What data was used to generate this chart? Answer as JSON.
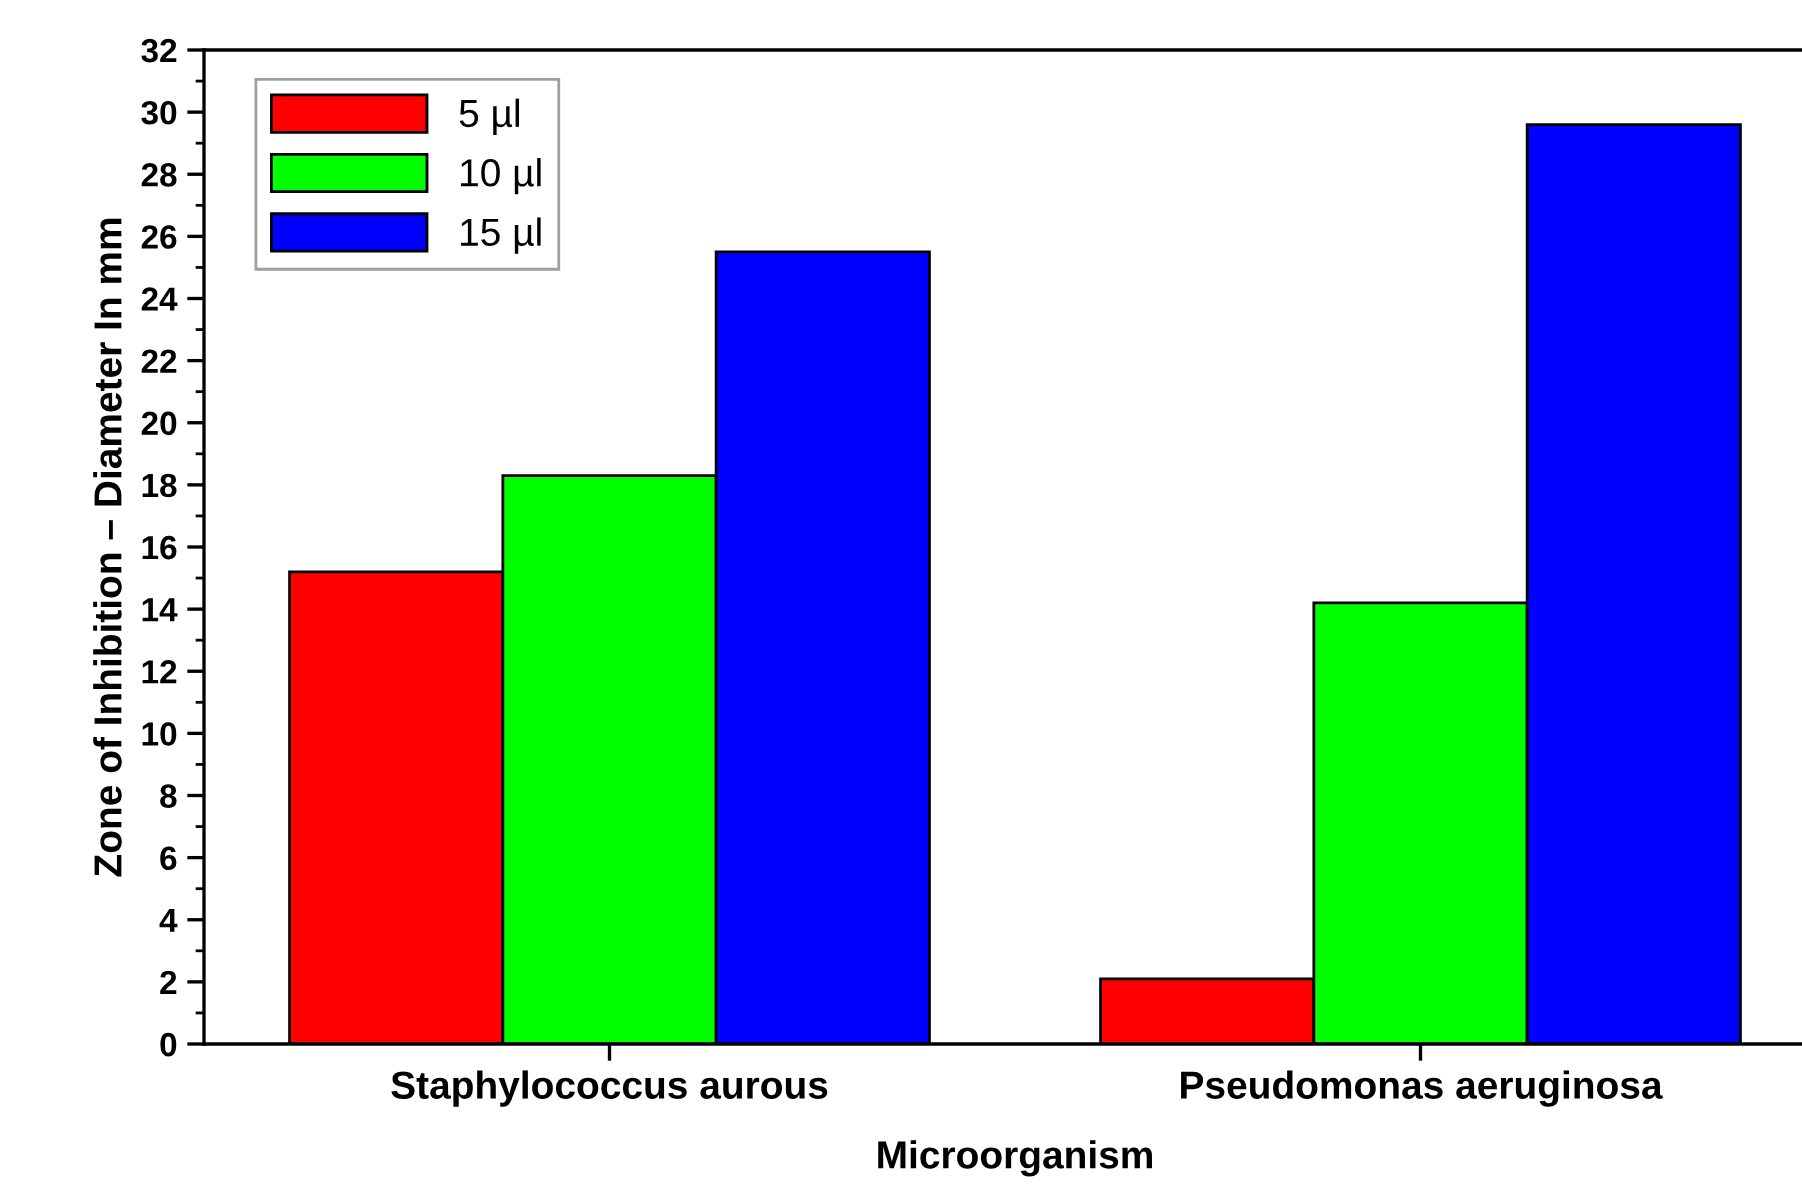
{
  "chart_data": {
    "type": "bar",
    "xlabel": "Microorganism",
    "ylabel": "Zone of Inhibition – Diameter In mm",
    "categories": [
      "Staphylococcus aurous",
      "Pseudomonas aeruginosa"
    ],
    "series": [
      {
        "name": "5 µl",
        "color": "#ff0000",
        "values": [
          15.2,
          2.1
        ]
      },
      {
        "name": "10 µl",
        "color": "#00ff00",
        "values": [
          18.3,
          14.2
        ]
      },
      {
        "name": "15 µl",
        "color": "#0000ff",
        "values": [
          25.5,
          29.6
        ]
      }
    ],
    "ylim": [
      0,
      32
    ],
    "yticks": [
      0,
      2,
      4,
      6,
      8,
      10,
      12,
      14,
      16,
      18,
      20,
      22,
      24,
      26,
      28,
      30,
      32
    ],
    "legend": "top left"
  }
}
